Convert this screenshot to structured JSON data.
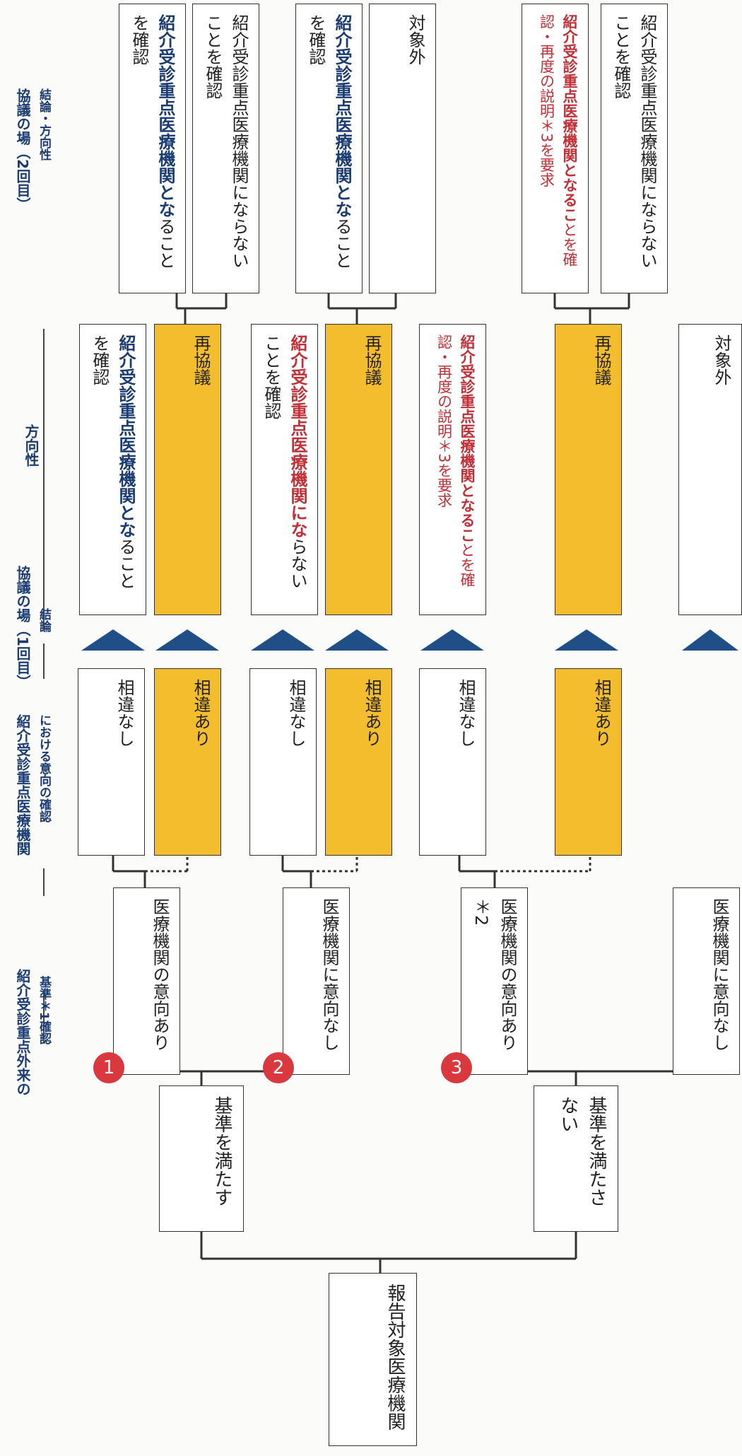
{
  "headers": {
    "col1": "紹介受診重点外来の",
    "col1b": "基準＊1確認",
    "col2": "紹介受診重点医療機関",
    "col2b": "における意向の確認",
    "col3": "協議の場（1回目）",
    "col3b": "結論",
    "col4": "方向性",
    "col5": "協議の場（2回目）",
    "col5b": "結論・方向性"
  },
  "root": "報告対象医療機関",
  "criteria": {
    "meets": "基準を満たす",
    "not_meets": "基準を満たさない"
  },
  "intent": {
    "i1": "医療機関の意向あり",
    "i2": "医療機関に意向なし",
    "i3": "医療機関の意向あり＊2",
    "i4": "医療機関に意向なし"
  },
  "badges": [
    "1",
    "2",
    "3"
  ],
  "result1": {
    "no_diff": "相違なし",
    "diff": "相違あり"
  },
  "direction": {
    "d1_hl": "紹介受診重点医療機関とな",
    "d1_rest": "ることを確認",
    "d2_hl": "紹介受診重点医療機関にな",
    "d2_rest": "らないことを確認",
    "d3_hl": "紹介受診重点医療機関となるこ",
    "d3_rest": "とを確認・再度の説明＊3を要求",
    "rediscuss": "再協議",
    "out_of_scope": "対象外"
  },
  "second": {
    "a_hl": "紹介受診重点医療機関とな",
    "a_rest": "ることを確認",
    "b": "紹介受診重点医療機関にならないことを確認",
    "c_hl": "紹介受診重点医療機関とな",
    "c_rest": "ることを確認",
    "d": "対象外",
    "e_hl": "紹介受診重点医療機関となるこ",
    "e_rest": "とを確認・再度の説明＊3を要求",
    "f": "紹介受診重点医療機関にならないことを確認"
  },
  "colors": {
    "navy": "#1a3c73",
    "red": "#c22f36",
    "yellow": "#f4bd2e",
    "arrow": "#1f4f86"
  }
}
